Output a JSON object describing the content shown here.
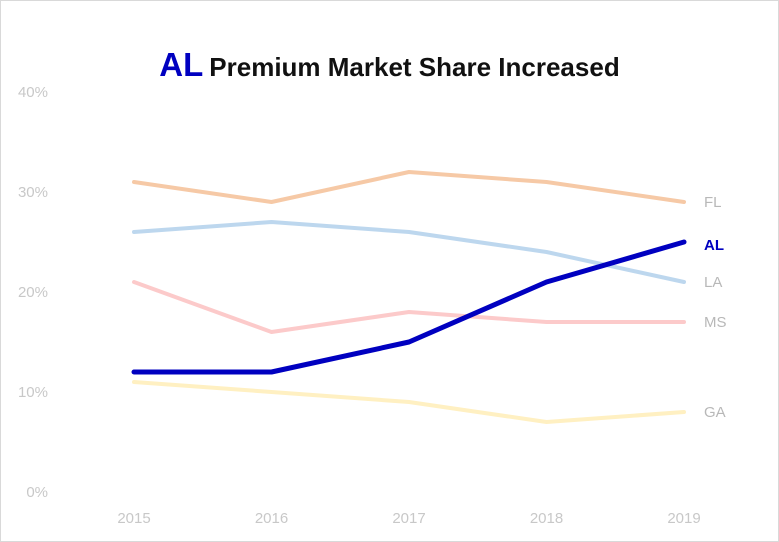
{
  "title": {
    "highlight": "AL",
    "rest": "Premium Market Share Increased"
  },
  "chart_data": {
    "type": "line",
    "title": "AL Premium Market Share Increased",
    "x": [
      "2015",
      "2016",
      "2017",
      "2018",
      "2019"
    ],
    "yticks": [
      "0%",
      "10%",
      "20%",
      "30%",
      "40%"
    ],
    "ylim": [
      0,
      40
    ],
    "grid": false,
    "series": [
      {
        "name": "FL",
        "values": [
          31,
          29,
          32,
          31,
          29
        ],
        "color": "#f6c9a6"
      },
      {
        "name": "LA",
        "values": [
          26,
          27,
          26,
          24,
          21
        ],
        "color": "#bdd7ee"
      },
      {
        "name": "MS",
        "values": [
          21,
          16,
          18,
          17,
          17
        ],
        "color": "#fccaca"
      },
      {
        "name": "GA",
        "values": [
          11,
          10,
          9,
          7,
          8
        ],
        "color": "#fff0c2"
      },
      {
        "name": "AL",
        "values": [
          12,
          12,
          15,
          21,
          25
        ],
        "color": "#0000c0",
        "highlight": true
      }
    ]
  }
}
